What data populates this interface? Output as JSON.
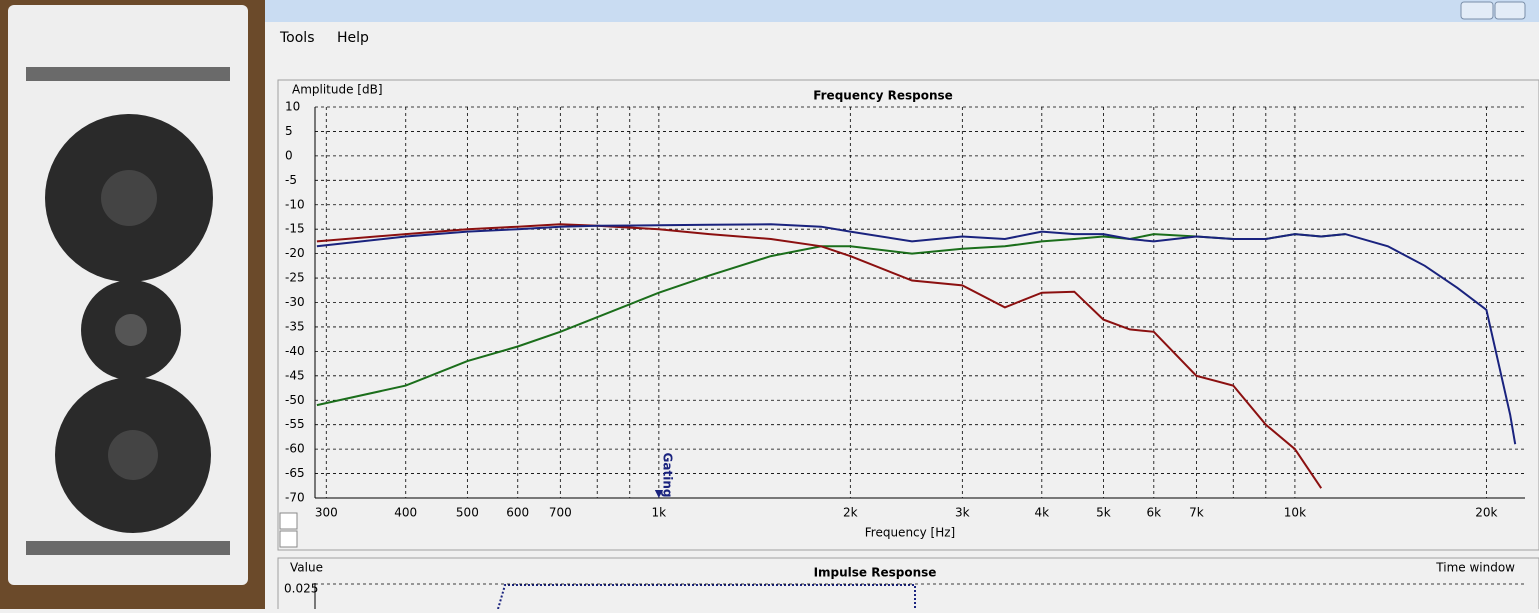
{
  "menu": {
    "items": [
      "Tools",
      "Help"
    ]
  },
  "chart_data": [
    {
      "type": "line",
      "title": "Frequency Response",
      "y_label": "Amplitude [dB]",
      "x_label": "Frequency [Hz]",
      "log_x": true,
      "grid": true,
      "xlim": [
        288,
        23000
      ],
      "ylim": [
        -70,
        10
      ],
      "xticks": [
        300,
        400,
        500,
        600,
        700,
        {
          "value": 1000,
          "label": "1k"
        },
        {
          "value": 2000,
          "label": "2k"
        },
        {
          "value": 3000,
          "label": "3k"
        },
        {
          "value": 4000,
          "label": "4k"
        },
        {
          "value": 5000,
          "label": "5k"
        },
        {
          "value": 6000,
          "label": "6k"
        },
        {
          "value": 7000,
          "label": "7k"
        },
        {
          "value": 10000,
          "label": "10k"
        },
        {
          "value": 20000,
          "label": "20k"
        }
      ],
      "xminor_ticks": [
        800,
        900,
        8000,
        9000
      ],
      "yticks": [
        10,
        5,
        0,
        -5,
        -10,
        -15,
        -20,
        -25,
        -30,
        -35,
        -40,
        -45,
        -50,
        -55,
        -60,
        -65,
        -70
      ],
      "annotation": {
        "label": "Gating",
        "x": 1000
      },
      "x": [
        290,
        400,
        500,
        600,
        700,
        800,
        1000,
        1200,
        1500,
        1800,
        2000,
        2500,
        3000,
        3500,
        4000,
        4500,
        5000,
        5500,
        6000,
        7000,
        8000,
        9000,
        10000,
        11000,
        12000,
        14000,
        16000,
        18000,
        20000,
        21800,
        22200
      ],
      "series": [
        {
          "color": "#1a237e",
          "values": [
            -18.5,
            -16.5,
            -15.5,
            -15,
            -14.5,
            -14.3,
            -14.2,
            -14.1,
            -14,
            -14.5,
            -15.5,
            -17.5,
            -16.5,
            -17,
            -15.5,
            -16,
            -16,
            -17,
            -17.5,
            -16.5,
            -17,
            -17,
            -16,
            -16.5,
            -16,
            -18.5,
            -22.5,
            -27,
            -31.5,
            -53,
            -59
          ]
        },
        {
          "color": "#8b1010",
          "values": [
            -17.5,
            -16,
            -15,
            -14.5,
            -14,
            -14.3,
            -15,
            -16,
            -17,
            -18.5,
            -20.5,
            -25.5,
            -26.5,
            -31,
            -28,
            -27.8,
            -33.5,
            -35.5,
            -36,
            -45,
            -47,
            -55,
            -60,
            -68,
            null,
            null,
            null,
            null,
            null,
            null,
            null
          ]
        },
        {
          "color": "#1b6e1b",
          "values": [
            -51,
            -47,
            -42,
            -39,
            -36,
            -33,
            -28,
            -24.5,
            -20.5,
            -18.5,
            -18.5,
            -20,
            -19,
            -18.5,
            -17.5,
            -17,
            -16.5,
            -17,
            -16,
            -16.5,
            -17,
            -17,
            -16,
            -16.5,
            -16,
            null,
            null,
            null,
            null,
            null,
            null
          ]
        }
      ]
    },
    {
      "type": "line",
      "title": "Impulse Response",
      "y_label": "Value",
      "corner_label": "Time window",
      "yticks": [
        0.025
      ]
    }
  ]
}
